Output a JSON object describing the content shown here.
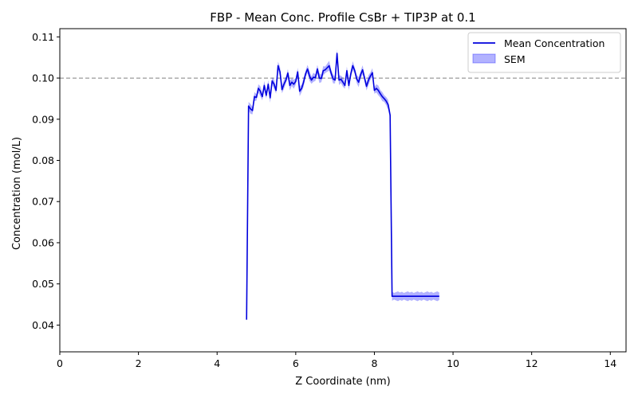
{
  "chart_data": {
    "type": "line",
    "title": "FBP - Mean Conc. Profile CsBr + TIP3P at 0.1",
    "xlabel": "Z Coordinate (nm)",
    "ylabel": "Concentration (mol/L)",
    "xlim": [
      0,
      14.4
    ],
    "ylim": [
      0.0335,
      0.112
    ],
    "x_ticks": [
      0,
      2,
      4,
      6,
      8,
      10,
      12,
      14
    ],
    "x_tick_labels": [
      "0",
      "2",
      "4",
      "6",
      "8",
      "10",
      "12",
      "14"
    ],
    "y_ticks": [
      0.04,
      0.05,
      0.06,
      0.07,
      0.08,
      0.09,
      0.1,
      0.11
    ],
    "y_tick_labels": [
      "0.04",
      "0.05",
      "0.06",
      "0.07",
      "0.08",
      "0.09",
      "0.10",
      "0.11"
    ],
    "grid": false,
    "legend_position": "top-right",
    "reference_line": {
      "y": 0.1,
      "style": "dashed",
      "color": "#808080"
    },
    "series": [
      {
        "name": "Mean Concentration",
        "color": "#0000dd",
        "x": [
          4.75,
          4.8,
          4.85,
          4.9,
          4.95,
          5.0,
          5.05,
          5.1,
          5.15,
          5.2,
          5.25,
          5.3,
          5.35,
          5.4,
          5.45,
          5.5,
          5.55,
          5.6,
          5.65,
          5.7,
          5.75,
          5.8,
          5.85,
          5.9,
          5.95,
          6.0,
          6.05,
          6.1,
          6.15,
          6.2,
          6.25,
          6.3,
          6.35,
          6.4,
          6.45,
          6.5,
          6.55,
          6.6,
          6.65,
          6.7,
          6.75,
          6.8,
          6.85,
          6.9,
          6.95,
          7.0,
          7.05,
          7.1,
          7.15,
          7.2,
          7.25,
          7.3,
          7.35,
          7.4,
          7.45,
          7.5,
          7.55,
          7.6,
          7.65,
          7.7,
          7.75,
          7.8,
          7.85,
          7.9,
          7.95,
          8.0,
          8.05,
          8.1,
          8.15,
          8.2,
          8.25,
          8.3,
          8.35,
          8.4,
          8.45,
          8.5,
          8.55,
          8.6,
          8.65,
          8.7,
          8.75,
          8.8,
          8.85,
          8.9,
          8.95,
          9.0,
          9.05,
          9.1,
          9.15,
          9.2,
          9.25,
          9.3,
          9.35,
          9.4,
          9.45,
          9.5,
          9.55,
          9.6,
          9.65
        ],
        "y": [
          0.0413,
          0.0932,
          0.0925,
          0.0921,
          0.0955,
          0.0953,
          0.0975,
          0.0968,
          0.0955,
          0.0982,
          0.0958,
          0.0985,
          0.0952,
          0.0993,
          0.0985,
          0.097,
          0.103,
          0.1015,
          0.0972,
          0.0985,
          0.0995,
          0.1012,
          0.0982,
          0.099,
          0.0985,
          0.0992,
          0.1015,
          0.0968,
          0.0975,
          0.099,
          0.101,
          0.1022,
          0.1005,
          0.0995,
          0.1002,
          0.1001,
          0.1022,
          0.1,
          0.0999,
          0.1018,
          0.102,
          0.1025,
          0.103,
          0.1012,
          0.0998,
          0.0995,
          0.106,
          0.0995,
          0.0997,
          0.099,
          0.0982,
          0.1018,
          0.0982,
          0.101,
          0.103,
          0.1018,
          0.0998,
          0.099,
          0.1008,
          0.102,
          0.1,
          0.098,
          0.0995,
          0.1005,
          0.1013,
          0.097,
          0.0975,
          0.097,
          0.0962,
          0.0955,
          0.095,
          0.0944,
          0.0935,
          0.091,
          0.047,
          0.047,
          0.047,
          0.047,
          0.047,
          0.047,
          0.047,
          0.047,
          0.047,
          0.047,
          0.047,
          0.047,
          0.047,
          0.047,
          0.047,
          0.047,
          0.047,
          0.047,
          0.047,
          0.047,
          0.047,
          0.047,
          0.047,
          0.047,
          0.047
        ]
      },
      {
        "name": "SEM",
        "color": "#0000ff",
        "fill_opacity": 0.3,
        "x": [],
        "y_low": [],
        "y_high": []
      }
    ]
  }
}
